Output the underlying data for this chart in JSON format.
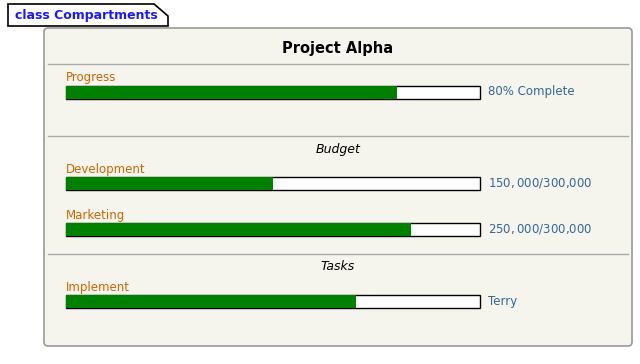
{
  "bg_color": "#ffffff",
  "outer_box_bg": "#f5f5ee",
  "outer_box_border": "#999999",
  "tab_label": "class Compartments",
  "tab_text_color": "#1a1aff",
  "class_name": "Project Alpha",
  "label_color": "#cc6600",
  "annotation_color": "#336699",
  "green_fill": "#008000",
  "bar_bg": "#ffffff",
  "bar_border": "#000000",
  "divider_color": "#aaaaaa",
  "compartments": [
    {
      "section_title": null,
      "items": [
        {
          "label": "Progress",
          "progress": 0.8,
          "annotation": "80% Complete"
        }
      ]
    },
    {
      "section_title": "Budget",
      "items": [
        {
          "label": "Development",
          "progress": 0.5,
          "annotation": "$150,000 / $300,000"
        },
        {
          "label": "Marketing",
          "progress": 0.833,
          "annotation": "$250,000 / $300,000"
        }
      ]
    },
    {
      "section_title": "Tasks",
      "items": [
        {
          "label": "Implement",
          "progress": 0.7,
          "annotation": "Terry"
        }
      ]
    }
  ]
}
